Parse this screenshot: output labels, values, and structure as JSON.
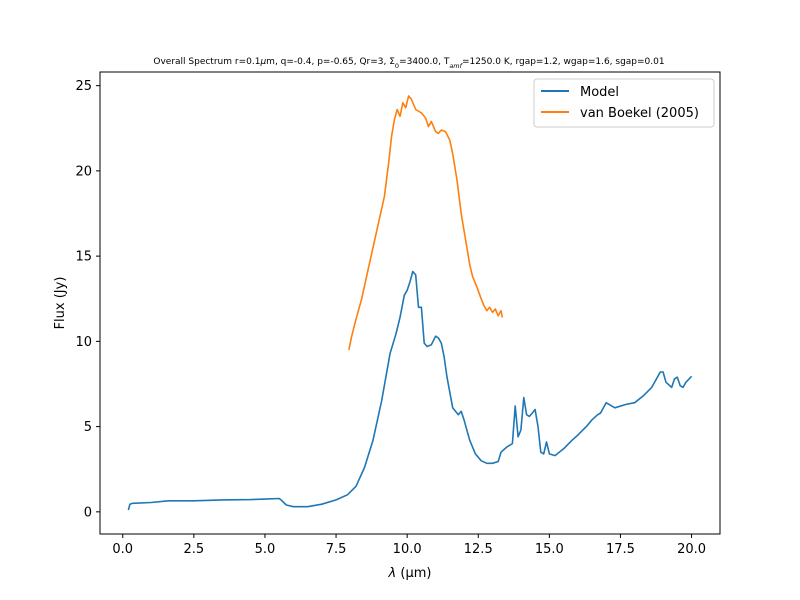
{
  "chart_data": {
    "type": "line",
    "title_parts": {
      "prefix": "Overall Spectrum r=0.1",
      "mu": "μ",
      "after_mu": "m, q=-0.4, p=-0.65, Qr=3, Σ",
      "sub0": "0",
      "mid": "=3400.0, T",
      "sub_amf": "amf",
      "suffix": "=1250.0 K, rgap=1.2, wgap=1.6, sgap=0.01"
    },
    "xlabel": {
      "symbol": "λ",
      "unit": " (μm)"
    },
    "ylabel": "Flux (Jy)",
    "xlim": [
      -0.8,
      21.0
    ],
    "ylim": [
      -1.3,
      25.8
    ],
    "xticks": [
      0.0,
      2.5,
      5.0,
      7.5,
      10.0,
      12.5,
      15.0,
      17.5,
      20.0
    ],
    "xtick_labels": [
      "0.0",
      "2.5",
      "5.0",
      "7.5",
      "10.0",
      "12.5",
      "15.0",
      "17.5",
      "20.0"
    ],
    "yticks": [
      0,
      5,
      10,
      15,
      20,
      25
    ],
    "ytick_labels": [
      "0",
      "5",
      "10",
      "15",
      "20",
      "25"
    ],
    "grid": false,
    "legend_position": "top-right",
    "series": [
      {
        "name": "Model",
        "color": "#1f77b4",
        "x": [
          0.2,
          0.25,
          0.35,
          1.0,
          1.6,
          2.5,
          3.5,
          4.5,
          5.0,
          5.5,
          5.6,
          5.75,
          6.0,
          6.5,
          7.0,
          7.5,
          7.9,
          8.2,
          8.5,
          8.8,
          9.1,
          9.4,
          9.6,
          9.75,
          9.9,
          10.0,
          10.1,
          10.2,
          10.3,
          10.4,
          10.5,
          10.6,
          10.7,
          10.85,
          11.0,
          11.1,
          11.2,
          11.3,
          11.4,
          11.6,
          11.8,
          11.9,
          12.0,
          12.2,
          12.4,
          12.6,
          12.8,
          13.0,
          13.2,
          13.3,
          13.5,
          13.7,
          13.8,
          13.9,
          14.0,
          14.1,
          14.2,
          14.3,
          14.4,
          14.5,
          14.6,
          14.7,
          14.8,
          14.9,
          15.0,
          15.2,
          15.5,
          15.8,
          16.0,
          16.3,
          16.5,
          16.7,
          16.8,
          16.9,
          17.0,
          17.3,
          17.7,
          18.0,
          18.3,
          18.6,
          18.8,
          18.9,
          19.0,
          19.1,
          19.3,
          19.4,
          19.5,
          19.6,
          19.7,
          19.8,
          20.0
        ],
        "y": [
          0.1,
          0.45,
          0.5,
          0.55,
          0.65,
          0.65,
          0.7,
          0.72,
          0.75,
          0.78,
          0.65,
          0.4,
          0.3,
          0.3,
          0.45,
          0.7,
          1.0,
          1.5,
          2.6,
          4.2,
          6.5,
          9.3,
          10.4,
          11.4,
          12.7,
          13.0,
          13.5,
          14.1,
          13.9,
          12.0,
          12.0,
          9.9,
          9.7,
          9.8,
          10.3,
          10.2,
          9.9,
          9.1,
          7.9,
          6.1,
          5.7,
          5.9,
          5.4,
          4.2,
          3.4,
          3.0,
          2.85,
          2.85,
          2.95,
          3.5,
          3.8,
          4.0,
          6.2,
          4.4,
          4.8,
          6.7,
          5.7,
          5.6,
          5.8,
          6.0,
          5.0,
          3.5,
          3.4,
          4.1,
          3.4,
          3.3,
          3.7,
          4.2,
          4.5,
          5.0,
          5.4,
          5.7,
          5.8,
          6.1,
          6.4,
          6.1,
          6.3,
          6.4,
          6.8,
          7.3,
          7.9,
          8.2,
          8.2,
          7.6,
          7.3,
          7.8,
          7.9,
          7.4,
          7.3,
          7.6,
          7.95
        ]
      },
      {
        "name": "van Boekel (2005)",
        "color": "#ff7f0e",
        "x": [
          7.95,
          8.05,
          8.2,
          8.4,
          8.6,
          8.8,
          9.0,
          9.2,
          9.35,
          9.45,
          9.55,
          9.65,
          9.75,
          9.85,
          9.95,
          10.05,
          10.15,
          10.3,
          10.5,
          10.65,
          10.75,
          10.85,
          11.0,
          11.1,
          11.2,
          11.35,
          11.5,
          11.6,
          11.75,
          11.9,
          12.0,
          12.1,
          12.2,
          12.3,
          12.45,
          12.6,
          12.7,
          12.8,
          12.9,
          13.0,
          13.1,
          13.2,
          13.3,
          13.35
        ],
        "y": [
          9.5,
          10.3,
          11.3,
          12.5,
          14.0,
          15.5,
          17.0,
          18.5,
          20.5,
          22.0,
          23.0,
          23.6,
          23.2,
          24.0,
          23.7,
          24.4,
          24.2,
          23.6,
          23.4,
          23.1,
          22.6,
          22.9,
          22.3,
          22.2,
          22.4,
          22.3,
          21.8,
          21.0,
          19.5,
          17.5,
          16.5,
          15.5,
          14.5,
          13.8,
          13.2,
          12.5,
          12.1,
          11.8,
          12.0,
          11.7,
          11.9,
          11.5,
          11.8,
          11.4
        ]
      }
    ]
  }
}
